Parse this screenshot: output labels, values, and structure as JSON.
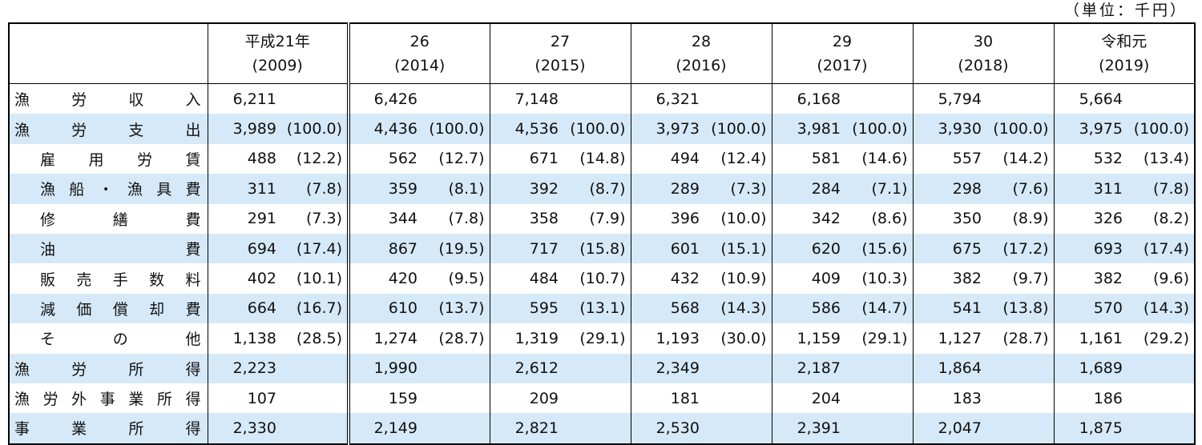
{
  "unit": "（単位：千円）",
  "columns": [
    {
      "era": "平成21年",
      "year": "(2009)"
    },
    {
      "era": "26",
      "year": "(2014)"
    },
    {
      "era": "27",
      "year": "(2015)"
    },
    {
      "era": "28",
      "year": "(2016)"
    },
    {
      "era": "29",
      "year": "(2017)"
    },
    {
      "era": "30",
      "year": "(2018)"
    },
    {
      "era": "令和元",
      "year": "(2019)"
    }
  ],
  "rows": [
    {
      "label": "漁労収入",
      "values": [
        "6,211",
        "6,426",
        "7,148",
        "6,321",
        "6,168",
        "5,794",
        "5,664"
      ]
    },
    {
      "label": "漁労支出",
      "values": [
        "3,989",
        "4,436",
        "4,536",
        "3,973",
        "3,981",
        "3,930",
        "3,975"
      ],
      "shares": [
        "(100.0)",
        "(100.0)",
        "(100.0)",
        "(100.0)",
        "(100.0)",
        "(100.0)",
        "(100.0)"
      ]
    },
    {
      "label": "雇用労賃",
      "values": [
        "488",
        "562",
        "671",
        "494",
        "581",
        "557",
        "532"
      ],
      "shares": [
        "(12.2)",
        "(12.7)",
        "(14.8)",
        "(12.4)",
        "(14.6)",
        "(14.2)",
        "(13.4)"
      ]
    },
    {
      "label": "漁船・漁具費",
      "values": [
        "311",
        "359",
        "392",
        "289",
        "284",
        "298",
        "311"
      ],
      "shares": [
        "(7.8)",
        "(8.1)",
        "(8.7)",
        "(7.3)",
        "(7.1)",
        "(7.6)",
        "(7.8)"
      ]
    },
    {
      "label": "修繕費",
      "values": [
        "291",
        "344",
        "358",
        "396",
        "342",
        "350",
        "326"
      ],
      "shares": [
        "(7.3)",
        "(7.8)",
        "(7.9)",
        "(10.0)",
        "(8.6)",
        "(8.9)",
        "(8.2)"
      ]
    },
    {
      "label": "油費",
      "values": [
        "694",
        "867",
        "717",
        "601",
        "620",
        "675",
        "693"
      ],
      "shares": [
        "(17.4)",
        "(19.5)",
        "(15.8)",
        "(15.1)",
        "(15.6)",
        "(17.2)",
        "(17.4)"
      ]
    },
    {
      "label": "販売手数料",
      "values": [
        "402",
        "420",
        "484",
        "432",
        "409",
        "382",
        "382"
      ],
      "shares": [
        "(10.1)",
        "(9.5)",
        "(10.7)",
        "(10.9)",
        "(10.3)",
        "(9.7)",
        "(9.6)"
      ]
    },
    {
      "label": "減価償却費",
      "values": [
        "664",
        "610",
        "595",
        "568",
        "586",
        "541",
        "570"
      ],
      "shares": [
        "(16.7)",
        "(13.7)",
        "(13.1)",
        "(14.3)",
        "(14.7)",
        "(13.8)",
        "(14.3)"
      ]
    },
    {
      "label": "その他",
      "values": [
        "1,138",
        "1,274",
        "1,319",
        "1,193",
        "1,159",
        "1,127",
        "1,161"
      ],
      "shares": [
        "(28.5)",
        "(28.7)",
        "(29.1)",
        "(30.0)",
        "(29.1)",
        "(28.7)",
        "(29.2)"
      ]
    },
    {
      "label": "漁労所得",
      "values": [
        "2,223",
        "1,990",
        "2,612",
        "2,349",
        "2,187",
        "1,864",
        "1,689"
      ]
    },
    {
      "label": "漁労外事業所得",
      "values": [
        "107",
        "159",
        "209",
        "181",
        "204",
        "183",
        "186"
      ]
    },
    {
      "label": "事業所得",
      "values": [
        "2,330",
        "2,149",
        "2,821",
        "2,530",
        "2,391",
        "2,047",
        "1,875"
      ]
    }
  ]
}
